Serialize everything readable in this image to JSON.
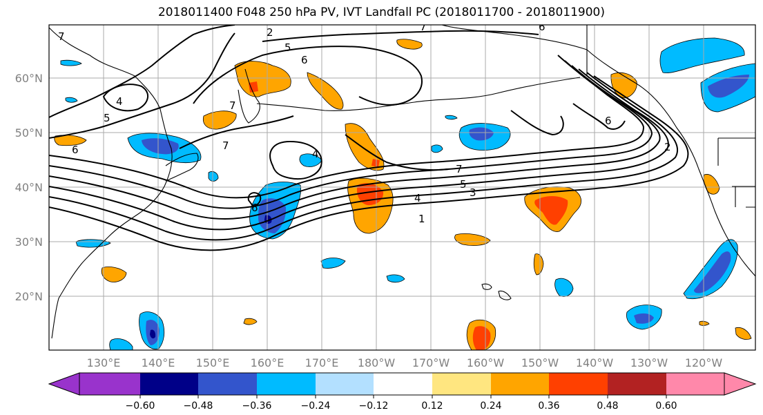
{
  "title": "2018011400 F048 250 hPa PV, IVT Landfall PC (2018011700 - 2018011900)",
  "lat_labels": [
    "60°N",
    "50°N",
    "40°N",
    "30°N",
    "20°N"
  ],
  "lon_labels": [
    "130°E",
    "140°E",
    "150°E",
    "160°E",
    "170°E",
    "180°W",
    "170°W",
    "160°W",
    "150°W",
    "140°W",
    "130°W",
    "120°W"
  ],
  "contour_labels": [
    "7",
    "2",
    "5",
    "6",
    "7",
    "6",
    "4",
    "5",
    "6",
    "7",
    "7",
    "4",
    "6",
    "7",
    "5",
    "4",
    "3",
    "1",
    "6",
    "2"
  ],
  "colorbar": {
    "ticks": [
      "−0.60",
      "−0.48",
      "−0.36",
      "−0.24",
      "−0.12",
      "0.12",
      "0.24",
      "0.36",
      "0.48",
      "0.60"
    ],
    "colors": [
      "#9933cc",
      "#000088",
      "#3355cc",
      "#00bbff",
      "#b3e0ff",
      "#ffffff",
      "#ffe680",
      "#ffa500",
      "#ff4000",
      "#b22222",
      "#ff88aa"
    ]
  }
}
